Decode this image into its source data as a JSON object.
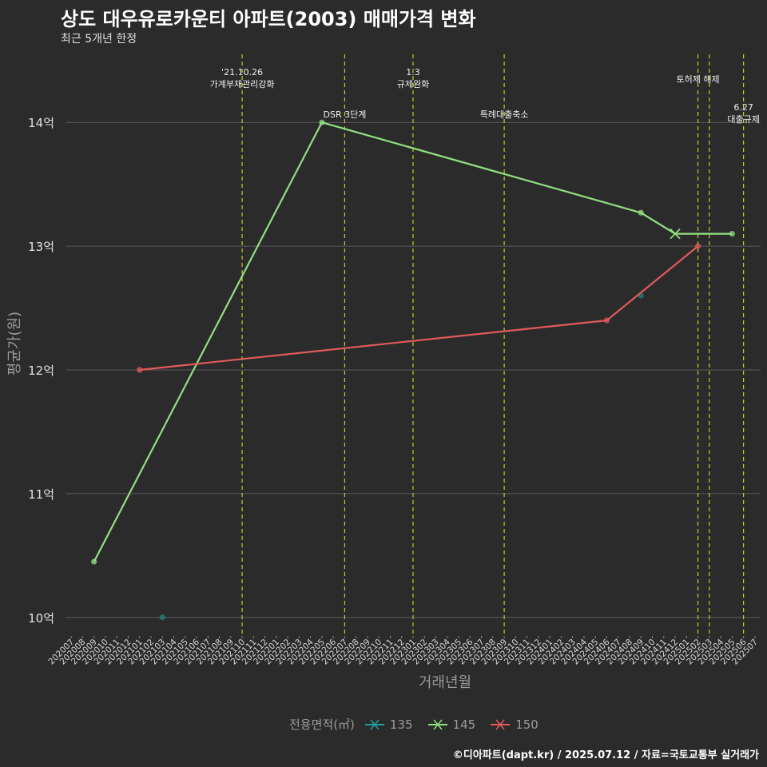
{
  "title": "상도 대우유로카운티 아파트(2003) 매매가격 변화",
  "subtitle": "최근 5개년 한정",
  "source": "©디아파트(dapt.kr) / 2025.07.12 / 자료=국토교통부 실거래가",
  "colors": {
    "background": "#2b2b2b",
    "grid": "#5a5a5a",
    "event_line": "#c9c92a",
    "s135": "#1f9e9e",
    "s145": "#90e080",
    "s150": "#e05a5a"
  },
  "chart_data": {
    "type": "line",
    "title": "상도 대우유로카운티 아파트(2003) 매매가격 변화",
    "xlabel": "거래년월",
    "ylabel": "평균가(원)",
    "x_categories": [
      "202007",
      "202008",
      "202009",
      "202010",
      "202011",
      "202012",
      "202101",
      "202102",
      "202103",
      "202104",
      "202105",
      "202106",
      "202107",
      "202108",
      "202109",
      "202110",
      "202111",
      "202112",
      "202201",
      "202202",
      "202203",
      "202204",
      "202205",
      "202206",
      "202207",
      "202208",
      "202209",
      "202210",
      "202211",
      "202212",
      "202301",
      "202302",
      "202303",
      "202304",
      "202305",
      "202306",
      "202307",
      "202308",
      "202309",
      "202310",
      "202311",
      "202312",
      "202401",
      "202402",
      "202403",
      "202404",
      "202405",
      "202406",
      "202407",
      "202408",
      "202409",
      "202410",
      "202411",
      "202412",
      "202501",
      "202502",
      "202503",
      "202504",
      "202505",
      "202506",
      "202507"
    ],
    "y_ticks": [
      {
        "value": 10,
        "label": "10억"
      },
      {
        "value": 11,
        "label": "11억"
      },
      {
        "value": 12,
        "label": "12억"
      },
      {
        "value": 13,
        "label": "13억"
      },
      {
        "value": 14,
        "label": "14억"
      }
    ],
    "ylim": [
      9.85,
      14.55
    ],
    "grid": true,
    "legend_title": "전용면적(㎡)",
    "legend_position": "bottom",
    "series": [
      {
        "name": "135",
        "color": "#1f9e9e",
        "points": [
          {
            "x": "202103",
            "y": 10.0
          },
          {
            "x": "202409",
            "y": 12.6
          }
        ]
      },
      {
        "name": "145",
        "color": "#90e080",
        "points": [
          {
            "x": "202009",
            "y": 10.45
          },
          {
            "x": "202205",
            "y": 14.0
          },
          {
            "x": "202409",
            "y": 13.27
          },
          {
            "x": "202412",
            "y": 13.1,
            "marker": "x"
          },
          {
            "x": "202505",
            "y": 13.1
          }
        ]
      },
      {
        "name": "150",
        "color": "#e05a5a",
        "points": [
          {
            "x": "202101",
            "y": 12.0
          },
          {
            "x": "202406",
            "y": 12.4
          },
          {
            "x": "202502",
            "y": 13.0
          }
        ]
      }
    ],
    "events": [
      {
        "x": "202110",
        "label": [
          "'21.10.26",
          "가계부채관리강화"
        ],
        "row": "top"
      },
      {
        "x": "202207",
        "label": [
          "DSR 3단계"
        ],
        "row": "bottom"
      },
      {
        "x": "202301",
        "label": [
          "1.3",
          "규제완화"
        ],
        "row": "top"
      },
      {
        "x": "202309",
        "label": [
          "특례대출축소"
        ],
        "row": "bottom"
      },
      {
        "x": "202502",
        "label": [
          "토허제 해제"
        ],
        "row": "mid"
      },
      {
        "x": "202503",
        "label": [],
        "row": "none"
      },
      {
        "x": "202506",
        "label": [
          "6.27",
          "대출규제"
        ],
        "row": "bottom2"
      }
    ]
  }
}
